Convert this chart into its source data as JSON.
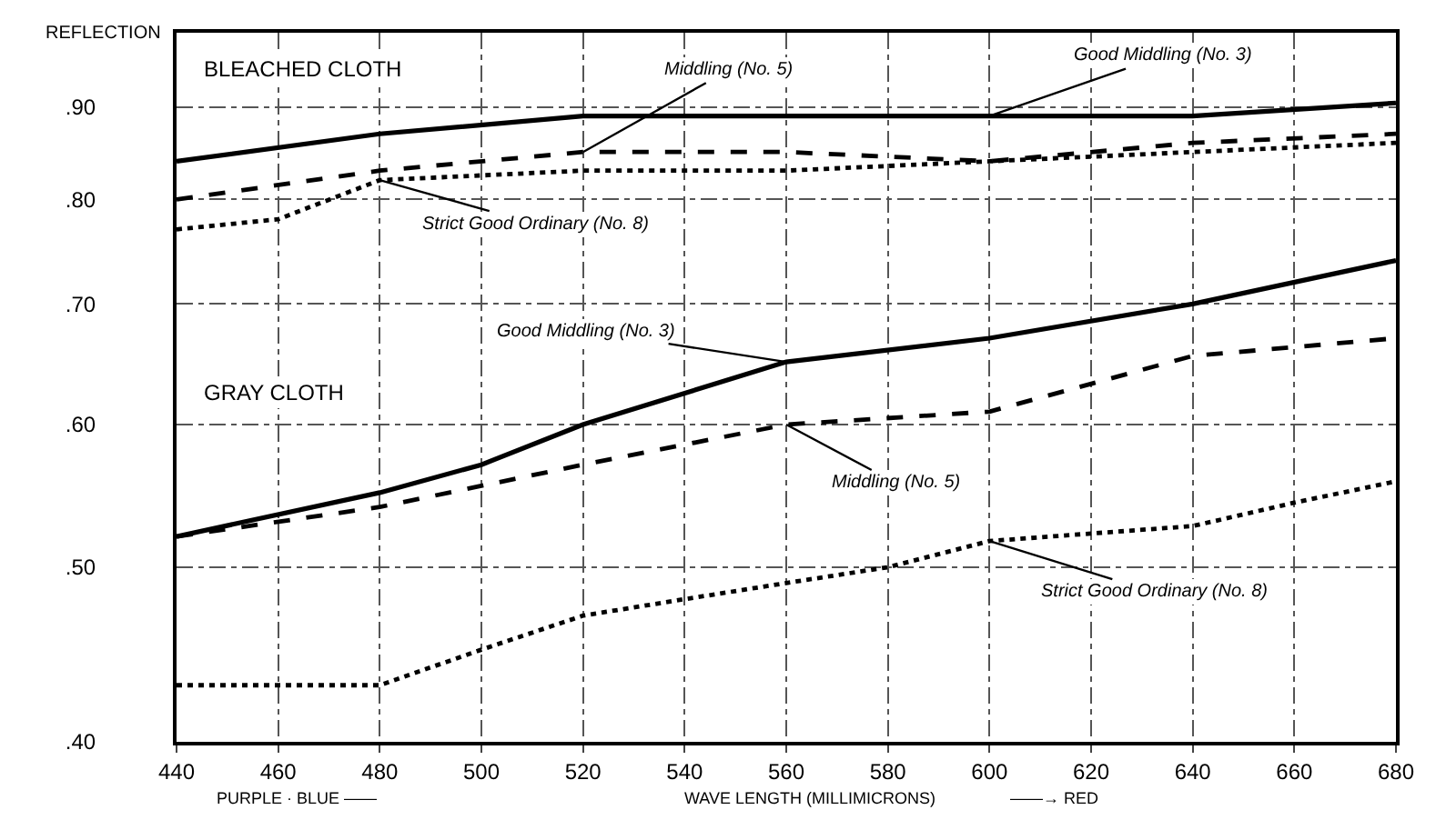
{
  "chart_data": {
    "type": "line",
    "ylabel": "REFLECTION",
    "xlabel": "WAVE LENGTH (MILLIMICRONS)",
    "annotations": [
      "BLEACHED CLOTH",
      "GRAY CLOTH",
      "PURPLE · BLUE ——",
      "——→ RED"
    ],
    "xlim": [
      440,
      680
    ],
    "xticks": [
      440,
      460,
      480,
      500,
      520,
      540,
      560,
      580,
      600,
      620,
      640,
      660,
      680
    ],
    "ylim": [
      0.4,
      0.99
    ],
    "yticks": [
      {
        "value": 0.4,
        "label": ".40"
      },
      {
        "value": 0.5,
        "label": ".50"
      },
      {
        "value": 0.6,
        "label": ".60"
      },
      {
        "value": 0.7,
        "label": ".70"
      },
      {
        "value": 0.8,
        "label": ".80"
      },
      {
        "value": 0.9,
        "label": ".90"
      }
    ],
    "log": "y",
    "grid": true,
    "legend": false,
    "series": [
      {
        "name": "Good Middling (No. 3)",
        "color": "#000000",
        "line_style": "solid",
        "x": [
          440,
          480,
          520,
          560,
          600,
          640,
          680
        ],
        "values": [
          0.84,
          0.87,
          0.89,
          0.89,
          0.89,
          0.89,
          0.905
        ]
      },
      {
        "name": "Middling (No. 5)",
        "color": "#000000",
        "line_style": "dashed",
        "x": [
          440,
          480,
          520,
          560,
          600,
          640,
          680
        ],
        "values": [
          0.8,
          0.83,
          0.85,
          0.85,
          0.84,
          0.86,
          0.87
        ]
      },
      {
        "name": "Strict Good Ordinary (No. 8)",
        "color": "#000000",
        "line_style": "dotted",
        "x": [
          440,
          460,
          480,
          520,
          560,
          600,
          640,
          680
        ],
        "values": [
          0.77,
          0.78,
          0.82,
          0.83,
          0.83,
          0.84,
          0.85,
          0.86
        ]
      },
      {
        "name": "Good Middling (No. 3)",
        "color": "#000000",
        "line_style": "solid",
        "x": [
          440,
          480,
          500,
          520,
          560,
          600,
          640,
          680
        ],
        "values": [
          0.52,
          0.55,
          0.57,
          0.6,
          0.65,
          0.67,
          0.7,
          0.74
        ]
      },
      {
        "name": "Middling (No. 5)",
        "color": "#000000",
        "line_style": "dashed",
        "x": [
          440,
          480,
          520,
          560,
          600,
          640,
          680
        ],
        "values": [
          0.52,
          0.54,
          0.57,
          0.6,
          0.61,
          0.655,
          0.67
        ]
      },
      {
        "name": "Strict Good Ordinary (No. 8)",
        "color": "#000000",
        "line_style": "dotted",
        "x": [
          440,
          480,
          500,
          520,
          540,
          560,
          580,
          600,
          620,
          640,
          660,
          680
        ],
        "values": [
          0.43,
          0.43,
          0.45,
          0.47,
          0.48,
          0.49,
          0.5,
          0.517,
          0.522,
          0.527,
          0.543,
          0.558
        ]
      }
    ]
  }
}
